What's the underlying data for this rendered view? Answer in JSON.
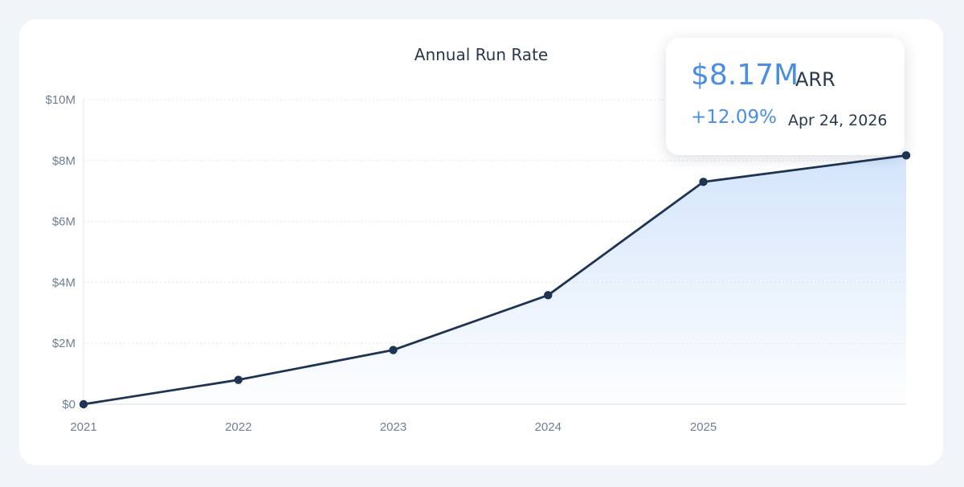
{
  "chart_data": {
    "type": "line",
    "title": "Annual Run Rate",
    "xlabel": "",
    "ylabel": "",
    "x_ticks": [
      "2021",
      "2022",
      "2023",
      "2024",
      "2025"
    ],
    "y_ticks": [
      "$0",
      "$2M",
      "$4M",
      "$6M",
      "$8M",
      "$10M"
    ],
    "ylim": [
      0,
      10000000
    ],
    "xlim": [
      "2021-01-01",
      "2026-04-24"
    ],
    "grid": "horizontal-dotted",
    "series": [
      {
        "points": [
          {
            "x": "2021-01-01",
            "y": 0
          },
          {
            "x": "2022-01-01",
            "y": 800000
          },
          {
            "x": "2023-01-01",
            "y": 1780000
          },
          {
            "x": "2024-01-01",
            "y": 3580000
          },
          {
            "x": "2025-01-01",
            "y": 7300000
          },
          {
            "x": "2026-04-24",
            "y": 8170000
          }
        ]
      }
    ],
    "colors": {
      "line": "#1e3452",
      "area_top": "#d4e5fb",
      "accent": "#4a8ee3"
    }
  },
  "tooltip": {
    "value": "$8.17M",
    "unit": "ARR",
    "change": "+12.09%",
    "date": "Apr 24, 2026"
  }
}
